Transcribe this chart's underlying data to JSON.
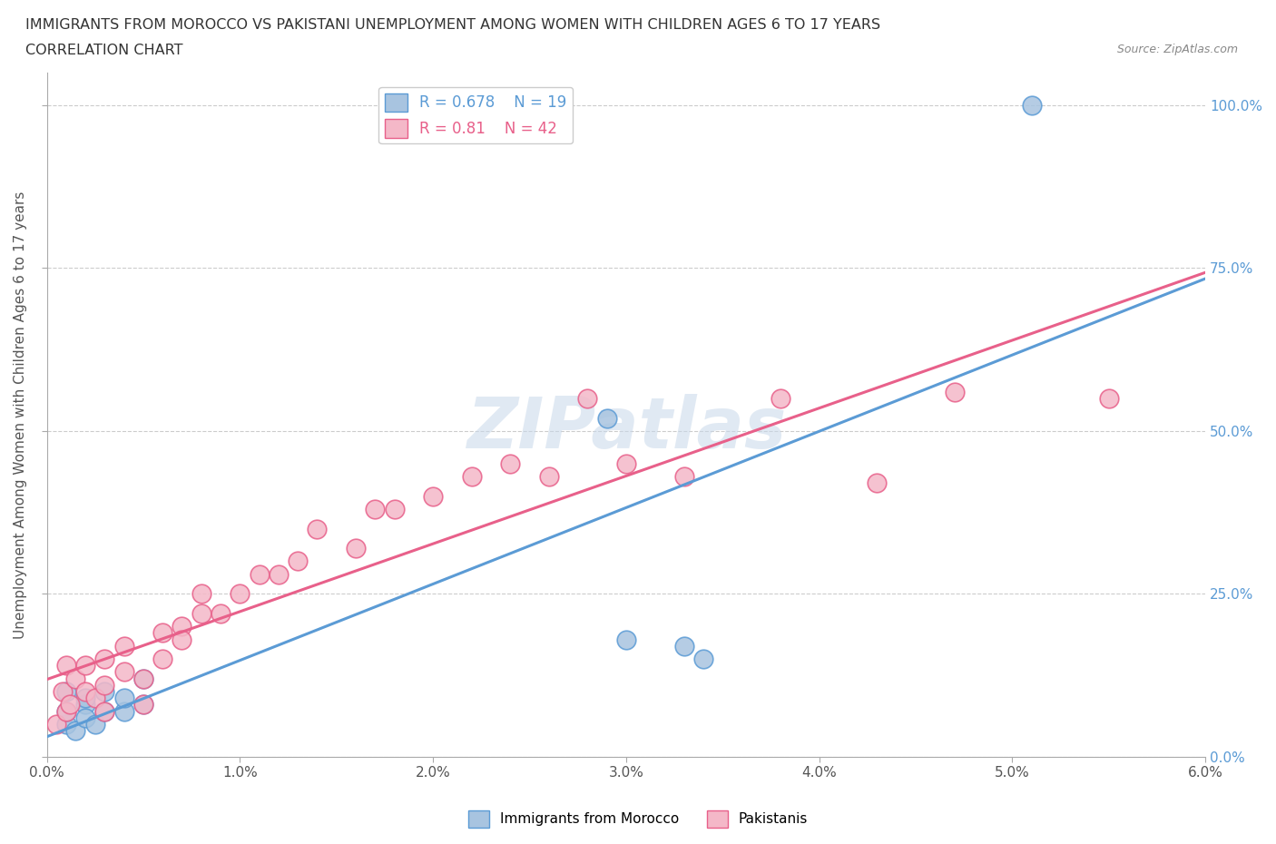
{
  "title_line1": "IMMIGRANTS FROM MOROCCO VS PAKISTANI UNEMPLOYMENT AMONG WOMEN WITH CHILDREN AGES 6 TO 17 YEARS",
  "title_line2": "CORRELATION CHART",
  "source": "Source: ZipAtlas.com",
  "ylabel_label": "Unemployment Among Women with Children Ages 6 to 17 years",
  "xlim": [
    0.0,
    0.06
  ],
  "ylim": [
    0.0,
    1.05
  ],
  "x_ticks": [
    0.0,
    0.01,
    0.02,
    0.03,
    0.04,
    0.05,
    0.06
  ],
  "x_tick_labels": [
    "0.0%",
    "1.0%",
    "2.0%",
    "3.0%",
    "4.0%",
    "5.0%",
    "6.0%"
  ],
  "y_ticks": [
    0.0,
    0.25,
    0.5,
    0.75,
    1.0
  ],
  "y_tick_labels": [
    "0.0%",
    "25.0%",
    "50.0%",
    "75.0%",
    "100.0%"
  ],
  "morocco_R": 0.678,
  "morocco_N": 19,
  "pakistan_R": 0.81,
  "pakistan_N": 42,
  "morocco_color": "#a8c4e0",
  "morocco_line_color": "#5b9bd5",
  "pakistan_color": "#f4b8c8",
  "pakistan_line_color": "#e8608a",
  "morocco_scatter_x": [
    0.001,
    0.001,
    0.001,
    0.0015,
    0.002,
    0.002,
    0.002,
    0.0025,
    0.003,
    0.003,
    0.004,
    0.004,
    0.005,
    0.005,
    0.029,
    0.033,
    0.034,
    0.051,
    0.03
  ],
  "morocco_scatter_y": [
    0.05,
    0.07,
    0.1,
    0.04,
    0.08,
    0.06,
    0.09,
    0.05,
    0.07,
    0.1,
    0.07,
    0.09,
    0.08,
    0.12,
    0.52,
    0.17,
    0.15,
    1.0,
    0.18
  ],
  "pakistan_scatter_x": [
    0.0005,
    0.0008,
    0.001,
    0.001,
    0.0012,
    0.0015,
    0.002,
    0.002,
    0.0025,
    0.003,
    0.003,
    0.003,
    0.004,
    0.004,
    0.005,
    0.005,
    0.006,
    0.006,
    0.007,
    0.007,
    0.008,
    0.008,
    0.009,
    0.01,
    0.011,
    0.012,
    0.013,
    0.014,
    0.016,
    0.017,
    0.018,
    0.02,
    0.022,
    0.024,
    0.026,
    0.028,
    0.03,
    0.033,
    0.038,
    0.043,
    0.047,
    0.055
  ],
  "pakistan_scatter_y": [
    0.05,
    0.1,
    0.07,
    0.14,
    0.08,
    0.12,
    0.1,
    0.14,
    0.09,
    0.07,
    0.11,
    0.15,
    0.13,
    0.17,
    0.12,
    0.08,
    0.15,
    0.19,
    0.2,
    0.18,
    0.22,
    0.25,
    0.22,
    0.25,
    0.28,
    0.28,
    0.3,
    0.35,
    0.32,
    0.38,
    0.38,
    0.4,
    0.43,
    0.45,
    0.43,
    0.55,
    0.45,
    0.43,
    0.55,
    0.42,
    0.56,
    0.55
  ]
}
